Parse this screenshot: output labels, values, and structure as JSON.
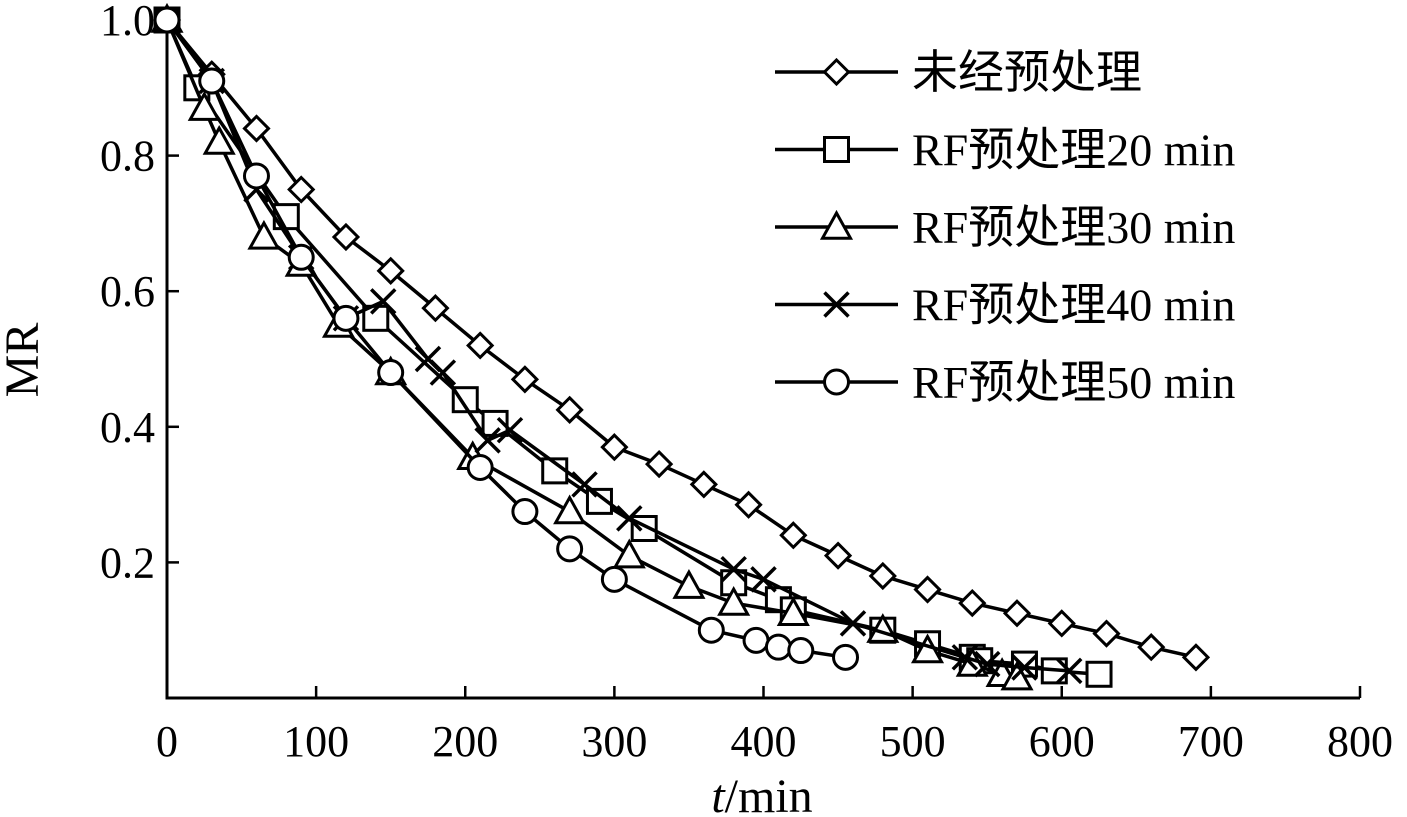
{
  "chart_data": {
    "type": "line",
    "xlabel": "t/min",
    "xlabel_italic_part": "t",
    "xlabel_rest": "/min",
    "ylabel": "MR",
    "xlim": [
      0,
      800
    ],
    "ylim": [
      0,
      1.0
    ],
    "x_ticks": [
      0,
      100,
      200,
      300,
      400,
      500,
      600,
      700,
      800
    ],
    "x_tick_labels": [
      "0",
      "100",
      "200",
      "300",
      "400",
      "500",
      "600",
      "700",
      "800"
    ],
    "y_ticks": [
      0.2,
      0.4,
      0.6,
      0.8,
      1.0
    ],
    "y_tick_labels": [
      "0.2",
      "0.4",
      "0.6",
      "0.8",
      "1.0"
    ],
    "grid": false,
    "legend_position": "top-right",
    "series": [
      {
        "name": "未经预处理",
        "marker": "diamond",
        "x": [
          0,
          30,
          60,
          90,
          120,
          150,
          180,
          210,
          240,
          270,
          300,
          330,
          360,
          390,
          420,
          450,
          480,
          510,
          540,
          570,
          600,
          630,
          660,
          690
        ],
        "y": [
          1.0,
          0.92,
          0.84,
          0.75,
          0.68,
          0.63,
          0.575,
          0.52,
          0.47,
          0.425,
          0.37,
          0.345,
          0.315,
          0.285,
          0.24,
          0.21,
          0.18,
          0.16,
          0.14,
          0.125,
          0.11,
          0.095,
          0.075,
          0.06
        ]
      },
      {
        "name": "RF预处理20 min",
        "marker": "square",
        "x": [
          0,
          20,
          80,
          140,
          200,
          220,
          260,
          290,
          320,
          380,
          410,
          420,
          480,
          510,
          540,
          545,
          575,
          595,
          625
        ],
        "y": [
          1.0,
          0.9,
          0.71,
          0.56,
          0.44,
          0.405,
          0.335,
          0.29,
          0.25,
          0.17,
          0.145,
          0.13,
          0.1,
          0.08,
          0.06,
          0.055,
          0.05,
          0.04,
          0.035
        ]
      },
      {
        "name": "RF预处理30 min",
        "marker": "triangle",
        "x": [
          0,
          25,
          35,
          65,
          90,
          115,
          150,
          205,
          270,
          310,
          350,
          380,
          420,
          480,
          510,
          540,
          560,
          570
        ],
        "y": [
          1.0,
          0.87,
          0.82,
          0.68,
          0.64,
          0.55,
          0.48,
          0.355,
          0.275,
          0.21,
          0.165,
          0.14,
          0.125,
          0.1,
          0.07,
          0.05,
          0.035,
          0.03
        ]
      },
      {
        "name": "RF预处理40 min",
        "marker": "x",
        "x": [
          0,
          30,
          60,
          90,
          120,
          145,
          175,
          185,
          215,
          230,
          280,
          310,
          380,
          400,
          460,
          535,
          550,
          575,
          605
        ],
        "y": [
          1.0,
          0.91,
          0.75,
          0.65,
          0.56,
          0.585,
          0.5,
          0.48,
          0.38,
          0.395,
          0.315,
          0.265,
          0.19,
          0.175,
          0.11,
          0.06,
          0.05,
          0.045,
          0.04
        ]
      },
      {
        "name": "RF预处理50 min",
        "marker": "circle",
        "x": [
          0,
          30,
          60,
          90,
          120,
          150,
          210,
          240,
          270,
          300,
          365,
          395,
          410,
          425,
          455
        ],
        "y": [
          1.0,
          0.91,
          0.77,
          0.65,
          0.56,
          0.48,
          0.34,
          0.275,
          0.22,
          0.175,
          0.1,
          0.085,
          0.075,
          0.07,
          0.06
        ]
      }
    ]
  }
}
